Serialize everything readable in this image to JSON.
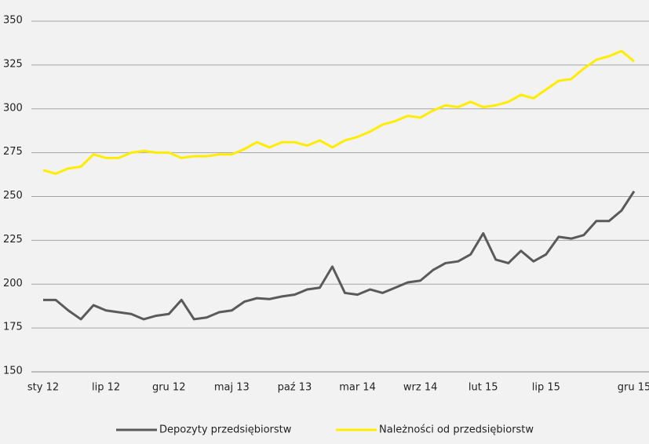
{
  "chart_data": {
    "type": "line",
    "categories": [
      "sty 12",
      null,
      null,
      null,
      null,
      "lip 12",
      null,
      null,
      null,
      null,
      "gru 12",
      null,
      null,
      null,
      null,
      "maj 13",
      null,
      null,
      null,
      null,
      "paź 13",
      null,
      null,
      null,
      null,
      "mar 14",
      null,
      null,
      null,
      null,
      "wrz 14",
      null,
      null,
      null,
      null,
      "lut 15",
      null,
      null,
      null,
      null,
      "lip 15",
      null,
      null,
      null,
      null,
      null,
      null,
      "gru 15"
    ],
    "series": [
      {
        "name": "Depozyty przedsiębiorstw",
        "color": "#5a5a5a",
        "values": [
          191,
          191,
          185,
          180,
          188,
          185,
          184,
          183,
          180,
          182,
          183,
          191,
          180,
          181,
          184,
          185,
          190,
          192,
          191.5,
          193,
          194,
          197,
          198,
          210,
          195,
          194,
          197,
          195,
          198,
          201,
          202,
          208,
          212,
          213,
          217,
          229,
          214,
          212,
          219,
          213,
          217,
          227,
          226,
          228,
          236,
          236,
          242,
          253
        ]
      },
      {
        "name": "Należności od przedsiębiorstw",
        "color": "#ffed00",
        "values": [
          265,
          263,
          266,
          267,
          274,
          272,
          272,
          275,
          276,
          275,
          275,
          272,
          273,
          273,
          274,
          274,
          277,
          281,
          278,
          281,
          281,
          279,
          282,
          278,
          282,
          284,
          287,
          291,
          293,
          296,
          295,
          299,
          302,
          301,
          304,
          301,
          302,
          304,
          308,
          306,
          311,
          316,
          317,
          323,
          328,
          330,
          333,
          327
        ]
      }
    ],
    "ylim": [
      150,
      350
    ],
    "yticks": [
      150,
      175,
      200,
      225,
      250,
      275,
      300,
      325,
      350
    ],
    "grid": true,
    "legend": "bottom"
  }
}
